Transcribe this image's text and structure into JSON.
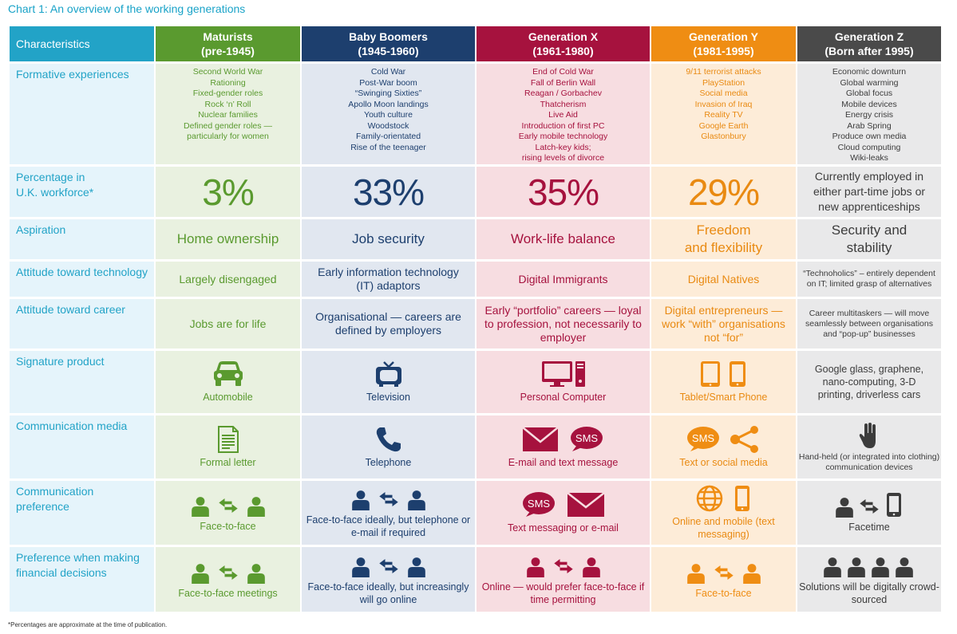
{
  "title": "Chart 1: An overview of the working generations",
  "footnote": "*Percentages are approximate at the time of publication.",
  "colors": {
    "accent": "#22a3c7",
    "maturists": "#5a9a2f",
    "baby_boomers": "#1d3f6e",
    "generation_x": "#a6123e",
    "generation_y": "#ef8d13",
    "generation_z": "#4a4a4a"
  },
  "header": {
    "characteristics": "Characteristics",
    "generations": [
      {
        "name": "Maturists",
        "years": "(pre-1945)"
      },
      {
        "name": "Baby Boomers",
        "years": "(1945-1960)"
      },
      {
        "name": "Generation X",
        "years": "(1961-1980)"
      },
      {
        "name": "Generation Y",
        "years": "(1981-1995)"
      },
      {
        "name": "Generation Z",
        "years": "(Born after 1995)"
      }
    ]
  },
  "rows": {
    "formative": {
      "label": "Formative experiences",
      "maturists": [
        "Second World War",
        "Rationing",
        "Fixed-gender roles",
        "Rock ‘n’ Roll",
        "Nuclear families",
        "Defined gender roles —",
        "particularly for women"
      ],
      "baby_boomers": [
        "Cold War",
        "Post-War boom",
        "“Swinging Sixties”",
        "Apollo Moon landings",
        "Youth culture",
        "Woodstock",
        "Family-orientated",
        "Rise of the teenager"
      ],
      "generation_x": [
        "End of Cold War",
        "Fall of Berlin Wall",
        "Reagan / Gorbachev",
        "Thatcherism",
        "Live Aid",
        "Introduction of first PC",
        "Early mobile technology",
        "Latch-key kids;",
        "rising levels of divorce"
      ],
      "generation_y": [
        "9/11 terrorist attacks",
        "PlayStation",
        "Social media",
        "Invasion of Iraq",
        "Reality TV",
        "Google Earth",
        "Glastonbury"
      ],
      "generation_z": [
        "Economic downturn",
        "Global warming",
        "Global focus",
        "Mobile devices",
        "Energy crisis",
        "Arab Spring",
        "Produce own media",
        "Cloud computing",
        "Wiki-leaks"
      ]
    },
    "percentage": {
      "label_line1": "Percentage in",
      "label_line2": "U.K. workforce*",
      "maturists": "3%",
      "baby_boomers": "33%",
      "generation_x": "35%",
      "generation_y": "29%",
      "generation_z": "Currently employed in either part-time jobs or new apprenticeships"
    },
    "aspiration": {
      "label": "Aspiration",
      "maturists": "Home ownership",
      "baby_boomers": "Job security",
      "generation_x": "Work-life balance",
      "generation_y": "Freedom and flexibility",
      "generation_z": "Security and stability"
    },
    "technology": {
      "label": "Attitude toward technology",
      "maturists": "Largely disengaged",
      "baby_boomers": "Early information technology (IT) adaptors",
      "generation_x": "Digital Immigrants",
      "generation_y": "Digital Natives",
      "generation_z": "“Technoholics” – entirely dependent on IT; limited grasp of alternatives"
    },
    "career": {
      "label": "Attitude toward career",
      "maturists": "Jobs are for life",
      "baby_boomers": "Organisational — careers are defined by employers",
      "generation_x": "Early “portfolio” careers — loyal to profession, not necessarily to employer",
      "generation_y": "Digital entrepreneurs — work “with” organisations not “for”",
      "generation_z": "Career multitaskers — will move seamlessly between organisations and “pop-up” businesses"
    },
    "signature": {
      "label": "Signature product",
      "maturists": "Automobile",
      "baby_boomers": "Television",
      "generation_x": "Personal Computer",
      "generation_y": "Tablet/Smart Phone",
      "generation_z": "Google glass, graphene, nano-computing, 3-D printing, driverless cars"
    },
    "media": {
      "label": "Communication media",
      "maturists": "Formal letter",
      "baby_boomers": "Telephone",
      "generation_x": "E-mail and text message",
      "generation_y": "Text or social media",
      "generation_z": "Hand-held (or integrated into clothing) communication devices",
      "sms": "SMS"
    },
    "preference": {
      "label": "Communication preference",
      "maturists": "Face-to-face",
      "baby_boomers": "Face-to-face ideally, but telephone or e-mail if required",
      "generation_x": "Text messaging or e-mail",
      "generation_y": "Online and mobile (text messaging)",
      "generation_z": "Facetime"
    },
    "financial": {
      "label": "Preference when making financial decisions",
      "maturists": "Face-to-face meetings",
      "baby_boomers": "Face-to-face ideally, but increasingly will go online",
      "generation_x": "Online — would prefer face-to-face if time permitting",
      "generation_y": "Face-to-face",
      "generation_z": "Solutions will be digitally crowd-sourced"
    }
  }
}
